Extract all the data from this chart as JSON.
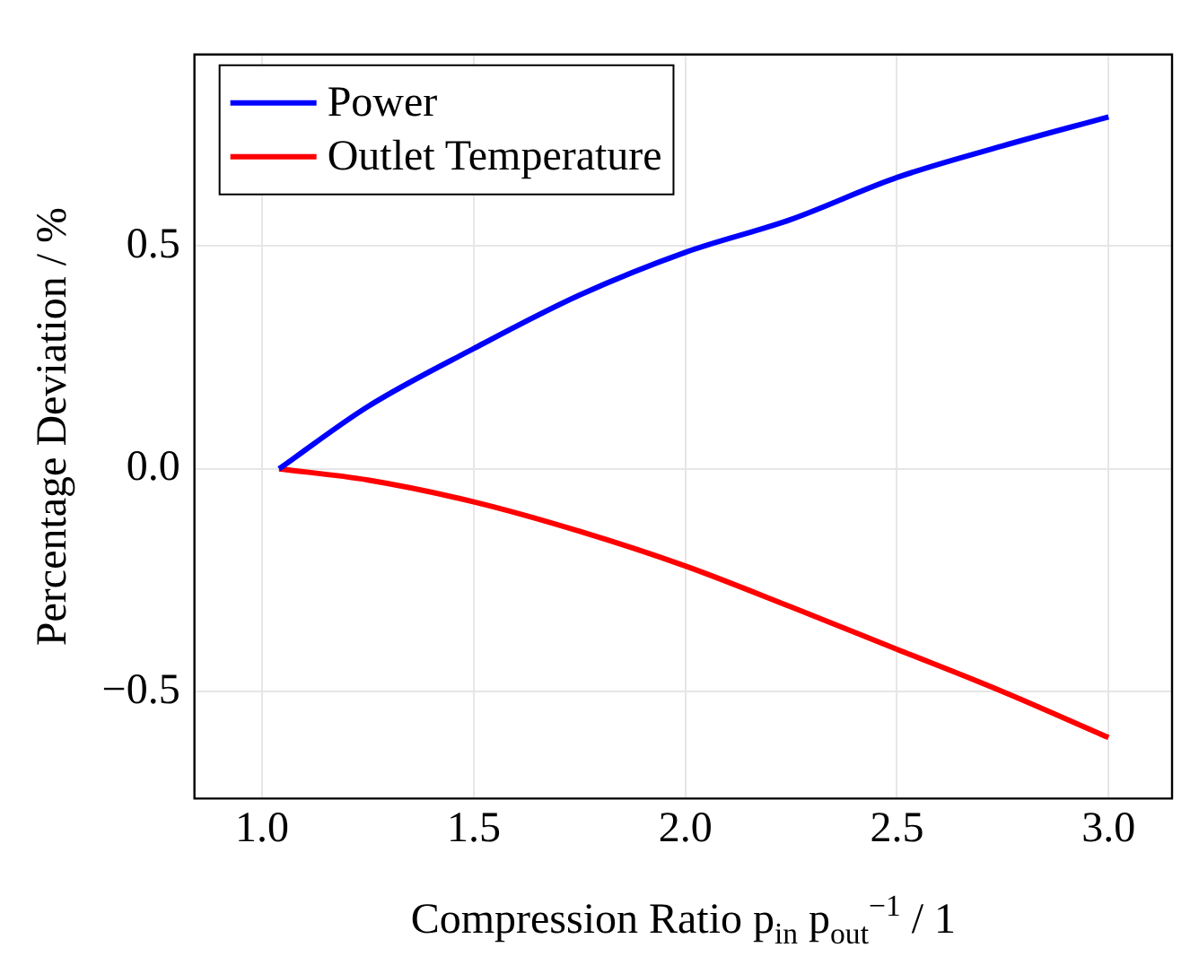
{
  "chart_data": {
    "type": "line",
    "xlabel": "Compression Ratio p$_{in}$ p$_{out}$$^{−1}$ / 1",
    "ylabel": "Percentage Deviation / %",
    "xlim": [
      0.84,
      3.15
    ],
    "ylim": [
      -0.74,
      0.93
    ],
    "xticks": [
      {
        "value": 1,
        "label": "1.0"
      },
      {
        "value": 1.5,
        "label": "1.5"
      },
      {
        "value": 2,
        "label": "2.0"
      },
      {
        "value": 2.5,
        "label": "2.5"
      },
      {
        "value": 3,
        "label": "3.0"
      }
    ],
    "yticks": [
      {
        "value": -0.5,
        "label": "−0.5"
      },
      {
        "value": 0,
        "label": "0.0"
      },
      {
        "value": 0.5,
        "label": "0.5"
      }
    ],
    "x": [
      1.04,
      1.25,
      1.5,
      1.75,
      2,
      2.25,
      2.5,
      2.75,
      3
    ],
    "grid": true,
    "legend": "top left",
    "marker": "none",
    "line_style": "solid",
    "series": [
      {
        "name": "Power",
        "color": "#0000ff",
        "values": [
          0,
          0.14,
          0.27,
          0.39,
          0.486,
          0.56,
          0.654,
          0.725,
          0.79
        ]
      },
      {
        "name": "Outlet Temperature",
        "color": "#ff0000",
        "values": [
          0,
          -0.025,
          -0.074,
          -0.14,
          -0.218,
          -0.31,
          -0.405,
          -0.5,
          -0.603
        ]
      }
    ]
  }
}
